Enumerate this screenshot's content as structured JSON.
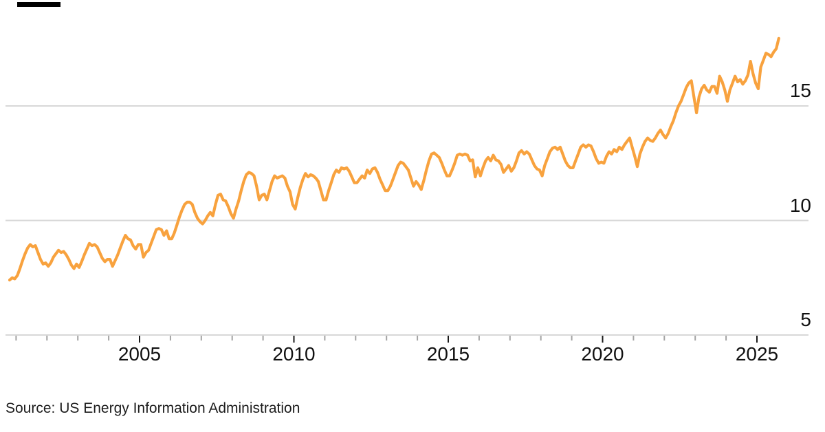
{
  "brand_bar": {
    "color": "#000000"
  },
  "source": {
    "label": "Source: US Energy Information Administration"
  },
  "colors": {
    "line": "#F8A23E",
    "gridline": "#D8D8D8",
    "axis_line": "#D8D8D8",
    "tick_minor": "#A3A3A3",
    "tick_major": "#1A1A1A",
    "label": "#111111"
  },
  "chart_data": {
    "type": "line",
    "title": "",
    "xlabel": "",
    "ylabel": "",
    "legend": "none",
    "grid": "horizontal",
    "x_start_year": 2000.7917,
    "x_step_years": 0.0833333,
    "x_axis_range": [
      2000.6,
      2026.7
    ],
    "ylim": [
      4.9,
      18.6
    ],
    "y_gridlines": [
      {
        "value": 15,
        "label": "15"
      },
      {
        "value": 10,
        "label": "10"
      },
      {
        "value": 5,
        "label": "5"
      }
    ],
    "x_ticks_minor_years": [
      2001,
      2002,
      2003,
      2004,
      2006,
      2007,
      2008,
      2009,
      2011,
      2012,
      2013,
      2014,
      2016,
      2017,
      2018,
      2019,
      2021,
      2022,
      2023,
      2024
    ],
    "x_ticks_major": [
      {
        "year": 2005,
        "label": "2005"
      },
      {
        "year": 2010,
        "label": "2010"
      },
      {
        "year": 2015,
        "label": "2015"
      },
      {
        "year": 2020,
        "label": "2020"
      },
      {
        "year": 2025,
        "label": "2025"
      }
    ],
    "values": [
      7.4,
      7.5,
      7.45,
      7.6,
      7.9,
      8.25,
      8.55,
      8.8,
      8.95,
      8.85,
      8.9,
      8.6,
      8.3,
      8.1,
      8.15,
      8.0,
      8.15,
      8.4,
      8.55,
      8.7,
      8.6,
      8.65,
      8.5,
      8.3,
      8.05,
      7.9,
      8.1,
      7.95,
      8.2,
      8.5,
      8.75,
      9.0,
      8.9,
      8.95,
      8.85,
      8.6,
      8.35,
      8.2,
      8.3,
      8.3,
      8.0,
      8.25,
      8.5,
      8.8,
      9.1,
      9.35,
      9.2,
      9.15,
      8.9,
      8.75,
      8.95,
      8.95,
      8.4,
      8.6,
      8.7,
      9.0,
      9.3,
      9.6,
      9.65,
      9.6,
      9.35,
      9.55,
      9.2,
      9.2,
      9.45,
      9.8,
      10.15,
      10.45,
      10.7,
      10.8,
      10.8,
      10.7,
      10.35,
      10.1,
      9.95,
      9.85,
      10.0,
      10.2,
      10.35,
      10.2,
      10.7,
      11.1,
      11.15,
      10.9,
      10.85,
      10.6,
      10.3,
      10.1,
      10.5,
      10.85,
      11.3,
      11.7,
      12.0,
      12.1,
      12.05,
      11.95,
      11.5,
      10.9,
      11.1,
      11.15,
      10.9,
      11.3,
      11.7,
      11.95,
      11.85,
      11.9,
      11.95,
      11.85,
      11.5,
      11.25,
      10.7,
      10.5,
      11.0,
      11.45,
      11.8,
      12.05,
      11.9,
      12.0,
      11.95,
      11.85,
      11.7,
      11.3,
      10.9,
      10.9,
      11.3,
      11.65,
      12.0,
      12.2,
      12.1,
      12.3,
      12.25,
      12.3,
      12.15,
      11.9,
      11.65,
      11.65,
      11.8,
      11.95,
      11.85,
      12.2,
      12.05,
      12.25,
      12.3,
      12.1,
      11.8,
      11.55,
      11.3,
      11.3,
      11.5,
      11.8,
      12.1,
      12.4,
      12.55,
      12.5,
      12.35,
      12.2,
      11.85,
      11.5,
      11.7,
      11.55,
      11.35,
      11.75,
      12.2,
      12.6,
      12.9,
      12.95,
      12.85,
      12.75,
      12.5,
      12.2,
      11.95,
      11.95,
      12.2,
      12.5,
      12.85,
      12.9,
      12.85,
      12.9,
      12.85,
      12.6,
      12.65,
      11.9,
      12.3,
      11.95,
      12.3,
      12.6,
      12.75,
      12.6,
      12.85,
      12.65,
      12.6,
      12.45,
      12.1,
      12.25,
      12.4,
      12.15,
      12.3,
      12.6,
      12.95,
      13.05,
      12.9,
      13.0,
      12.9,
      12.65,
      12.4,
      12.25,
      12.2,
      11.95,
      12.4,
      12.7,
      13.0,
      13.15,
      13.2,
      13.1,
      13.2,
      12.9,
      12.6,
      12.4,
      12.3,
      12.3,
      12.6,
      12.9,
      13.2,
      13.3,
      13.2,
      13.3,
      13.25,
      13.0,
      12.7,
      12.5,
      12.55,
      12.5,
      12.8,
      13.0,
      12.9,
      13.1,
      13.0,
      13.2,
      13.1,
      13.3,
      13.45,
      13.6,
      13.2,
      12.8,
      12.35,
      12.9,
      13.2,
      13.45,
      13.6,
      13.5,
      13.45,
      13.6,
      13.8,
      13.95,
      13.75,
      13.6,
      13.8,
      14.1,
      14.35,
      14.7,
      15.0,
      15.2,
      15.5,
      15.8,
      16.0,
      16.1,
      15.4,
      14.7,
      15.4,
      15.75,
      15.9,
      15.7,
      15.6,
      15.85,
      15.85,
      15.55,
      16.3,
      16.05,
      15.7,
      15.2,
      15.7,
      16.0,
      16.3,
      16.05,
      16.15,
      15.95,
      16.1,
      16.35,
      16.95,
      16.4,
      16.0,
      15.75,
      16.7,
      17.0,
      17.3,
      17.25,
      17.15,
      17.35,
      17.5,
      17.95
    ]
  }
}
